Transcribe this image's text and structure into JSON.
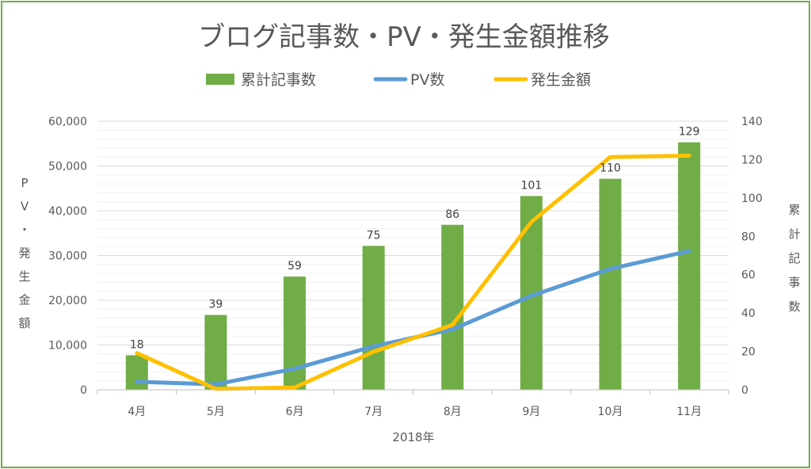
{
  "chart_data": {
    "type": "bar+line",
    "title": "ブログ記事数・PV・発生金額推移",
    "xlabel": "2018年",
    "ylabel_left": "PV・発生金額",
    "ylabel_right": "累計記事数",
    "categories": [
      "4月",
      "5月",
      "6月",
      "7月",
      "8月",
      "9月",
      "10月",
      "11月"
    ],
    "ylim_left": [
      0,
      60000
    ],
    "ylim_right": [
      0,
      140
    ],
    "left_ticks": [
      "0",
      "10,000",
      "20,000",
      "30,000",
      "40,000",
      "50,000",
      "60,000"
    ],
    "right_ticks": [
      "0",
      "20",
      "40",
      "60",
      "80",
      "100",
      "120",
      "140"
    ],
    "grid": true,
    "legend_position": "top",
    "series": [
      {
        "name": "累計記事数",
        "kind": "bar",
        "axis": "right",
        "color": "#70ad47",
        "values": [
          18,
          39,
          59,
          75,
          86,
          101,
          110,
          129
        ],
        "labels": [
          "18",
          "39",
          "59",
          "75",
          "86",
          "101",
          "110",
          "129"
        ]
      },
      {
        "name": "PV数",
        "kind": "line",
        "axis": "left",
        "color": "#5b9bd5",
        "values": [
          1800,
          1200,
          4700,
          9700,
          13500,
          21000,
          27000,
          31000
        ]
      },
      {
        "name": "発生金額",
        "kind": "line",
        "axis": "left",
        "color": "#ffc000",
        "values": [
          8200,
          200,
          500,
          8500,
          14500,
          37500,
          52000,
          52300
        ]
      }
    ]
  }
}
